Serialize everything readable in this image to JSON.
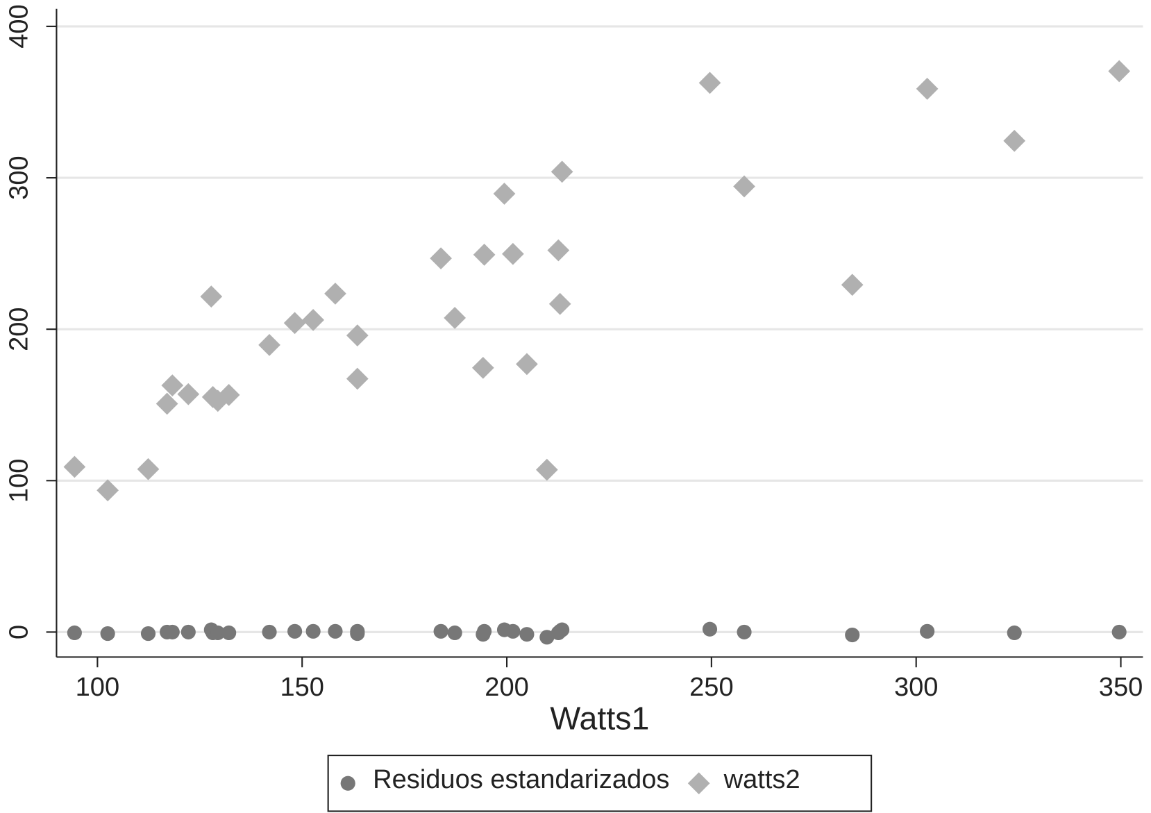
{
  "chart_data": {
    "type": "scatter",
    "x_label": "Watts1",
    "x": [
      94.4,
      102.5,
      112.4,
      117.0,
      118.3,
      122.2,
      127.8,
      128.2,
      129.4,
      132.1,
      142.0,
      148.2,
      152.7,
      158.1,
      163.5,
      163.5,
      183.9,
      187.3,
      194.2,
      194.5,
      199.4,
      201.5,
      204.9,
      209.8,
      212.6,
      213.0,
      213.5,
      249.6,
      258.0,
      284.4,
      302.7,
      324.0,
      349.6
    ],
    "series": [
      {
        "name": "Residuos estandarizados",
        "color": "#777777",
        "marker": "circle",
        "values": [
          -0.5,
          -1,
          -1,
          0,
          0,
          0,
          1.5,
          -0.5,
          -0.5,
          -0.5,
          0,
          0.5,
          0.5,
          0.5,
          0.5,
          -1,
          0.5,
          -0.5,
          -1.5,
          0.5,
          1.5,
          0.5,
          -1.5,
          -3.4,
          -0.5,
          0.5,
          1.5,
          1.9,
          0,
          -1.9,
          0.5,
          -0.5,
          0
        ]
      },
      {
        "name": "watts2",
        "color": "#b0b0b0",
        "marker": "diamond",
        "values": [
          109.1,
          93.6,
          107.6,
          150.8,
          162.9,
          157.1,
          221.6,
          155.2,
          152.7,
          156.6,
          189.6,
          204.1,
          206.1,
          223.5,
          195.9,
          167.3,
          246.8,
          207.5,
          174.5,
          249.2,
          289.5,
          249.7,
          177.0,
          107.2,
          252.1,
          216.7,
          304.0,
          362.7,
          294.3,
          229.3,
          358.8,
          324.4,
          370.4
        ]
      }
    ],
    "xlim": [
      90,
      355.4
    ],
    "xticks": [
      100,
      150,
      200,
      250,
      300,
      350
    ],
    "ylim": [
      -16.5,
      411.6
    ],
    "yticks": [
      0,
      100,
      200,
      300,
      400
    ],
    "grid": true,
    "legend": "bottom"
  }
}
